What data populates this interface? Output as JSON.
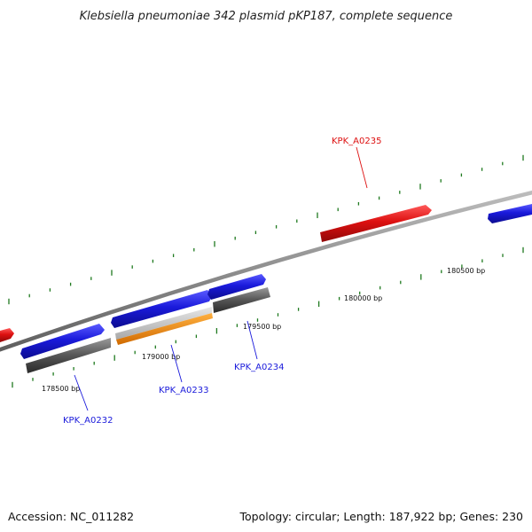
{
  "title": "Klebsiella pneumoniae 342 plasmid pKP187, complete sequence",
  "footer": {
    "accession": "Accession: NC_011282",
    "summary": "Topology: circular; Length: 187,922 bp; Genes: 230"
  },
  "scale_labels": [
    "178500 bp",
    "179000 bp",
    "179500 bp",
    "180000 bp",
    "180500 bp"
  ],
  "genes": [
    {
      "label": "KPK_A0232",
      "strand": "forward",
      "color": "#1a1adb"
    },
    {
      "label": "KPK_A0233",
      "strand": "forward",
      "color": "#1a1adb"
    },
    {
      "label": "KPK_A0234",
      "strand": "forward",
      "color": "#1a1adb"
    },
    {
      "label": "KPK_A0235",
      "strand": "reverse",
      "color": "#dd1010"
    }
  ],
  "colors": {
    "forward_gene": "#1a1adb",
    "reverse_gene": "#dd1010",
    "cds_feature": "#555555",
    "orange_feature": "#f08a00",
    "backbone": "#8a8a8a",
    "tick": "#1f7a1f"
  }
}
